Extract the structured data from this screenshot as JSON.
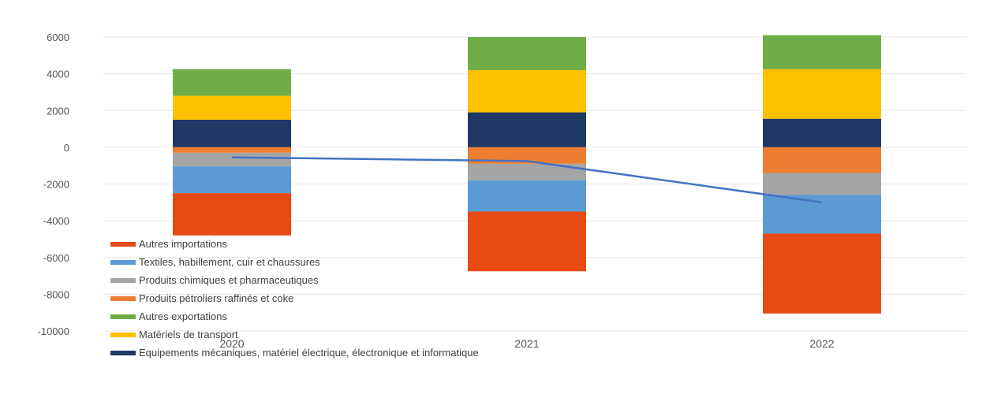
{
  "chart_data": {
    "type": "bar",
    "stacked": true,
    "categories": [
      "2020",
      "2021",
      "2022"
    ],
    "ylim": [
      -10000,
      6000
    ],
    "yticks": [
      6000,
      4000,
      2000,
      0,
      -2000,
      -4000,
      -6000,
      -8000,
      -10000
    ],
    "grid": true,
    "legend_position": "bottom-left",
    "series": [
      {
        "name": "Equipements mécaniques, matériel électrique, électronique et informatique",
        "color": "#1f3864",
        "values": [
          1500,
          1900,
          1550
        ]
      },
      {
        "name": "Matériels de transport",
        "color": "#ffc000",
        "values": [
          1300,
          2300,
          2700
        ]
      },
      {
        "name": "Autres exportations",
        "color": "#70ad47",
        "values": [
          1450,
          1800,
          1850
        ]
      },
      {
        "name": "Produits pétroliers raffinés et coke",
        "color": "#ed7d31",
        "values": [
          -300,
          -900,
          -1400
        ]
      },
      {
        "name": "Produits chimiques et pharmaceutiques",
        "color": "#a5a5a5",
        "values": [
          -750,
          -900,
          -1200
        ]
      },
      {
        "name": "Textiles, habillement, cuir et chaussures",
        "color": "#5b9bd5",
        "values": [
          -1450,
          -1700,
          -2100
        ]
      },
      {
        "name": "Autres importations",
        "color": "#e84a14",
        "values": [
          -2300,
          -3250,
          -4350
        ]
      }
    ],
    "line": {
      "color": "#4472c4",
      "values": [
        -550,
        -750,
        -3000
      ]
    }
  }
}
